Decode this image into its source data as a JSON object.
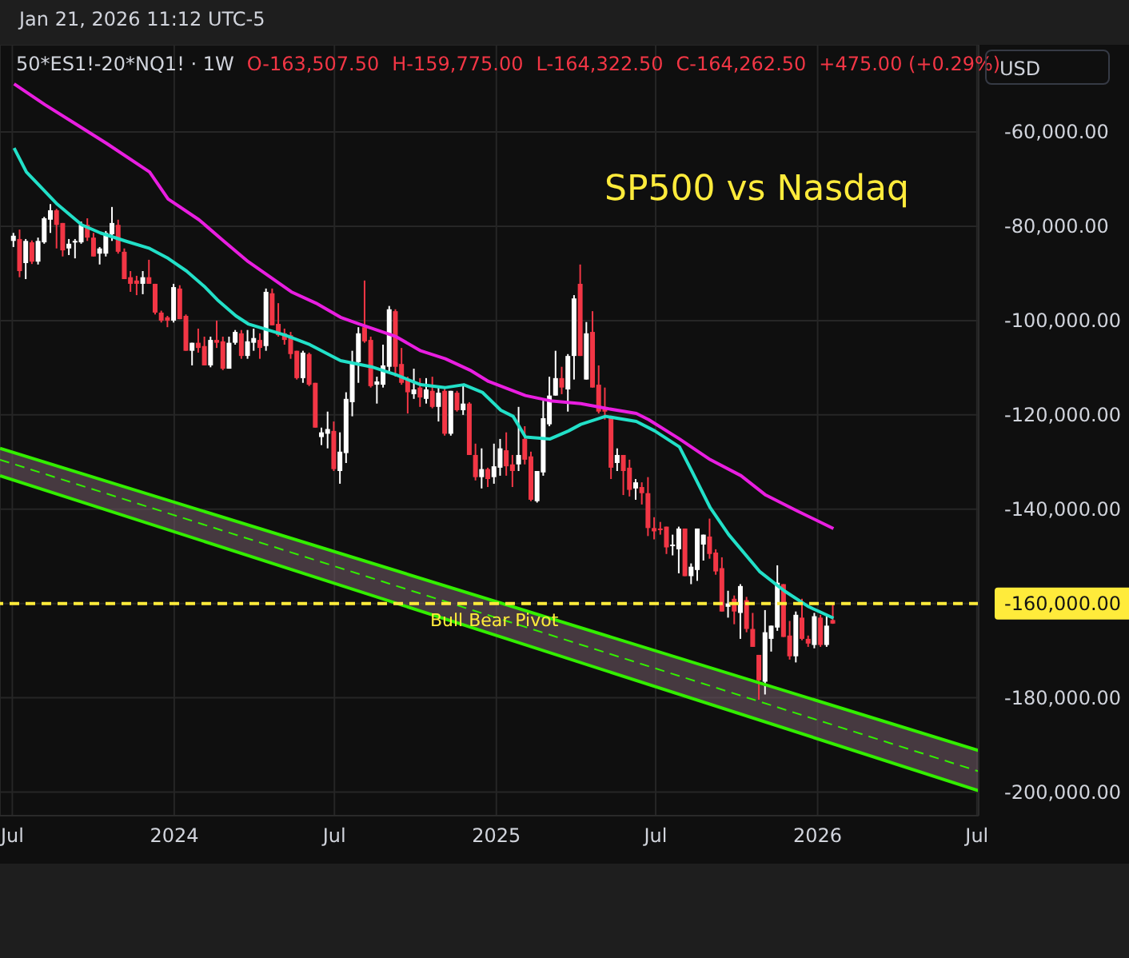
{
  "chart_data": {
    "type": "candlestick",
    "title": "SP500 vs Nasdaq",
    "annotations": [
      "Jan 21, 2026 11:12 UTC-5",
      "50*ES1!-20*NQ1! · 1W",
      "O-163,507.50",
      "H-159,775.00",
      "L-164,322.50",
      "C-164,262.50",
      "+475.00 (+0.29%)",
      "USD"
    ],
    "x": [
      "2023-07-03",
      "2023-07-10",
      "2023-07-17",
      "2023-07-24",
      "2023-07-31",
      "2023-08-07",
      "2023-08-14",
      "2023-08-21",
      "2023-08-28",
      "2023-09-04",
      "2023-09-11",
      "2023-09-18",
      "2023-09-25",
      "2023-10-02",
      "2023-10-09",
      "2023-10-16",
      "2023-10-23",
      "2023-10-30",
      "2023-11-06",
      "2023-11-13",
      "2023-11-20",
      "2023-11-27",
      "2023-12-04",
      "2023-12-11",
      "2023-12-18",
      "2023-12-25",
      "2024-01-01",
      "2024-01-08",
      "2024-01-15",
      "2024-01-22",
      "2024-01-29",
      "2024-02-05",
      "2024-02-12",
      "2024-02-19",
      "2024-02-26",
      "2024-03-04",
      "2024-03-11",
      "2024-03-18",
      "2024-03-25",
      "2024-04-01",
      "2024-04-08",
      "2024-04-15",
      "2024-04-22",
      "2024-04-29",
      "2024-05-06",
      "2024-05-13",
      "2024-05-20",
      "2024-05-27",
      "2024-06-03",
      "2024-06-10",
      "2024-06-17",
      "2024-06-24",
      "2024-07-01",
      "2024-07-08",
      "2024-07-15",
      "2024-07-22",
      "2024-07-29",
      "2024-08-05",
      "2024-08-12",
      "2024-08-19",
      "2024-08-26",
      "2024-09-02",
      "2024-09-09",
      "2024-09-16",
      "2024-09-23",
      "2024-09-30",
      "2024-10-07",
      "2024-10-14",
      "2024-10-21",
      "2024-10-28",
      "2024-11-04",
      "2024-11-11",
      "2024-11-18",
      "2024-11-25",
      "2024-12-02",
      "2024-12-09",
      "2024-12-16",
      "2024-12-23",
      "2024-12-30",
      "2025-01-06",
      "2025-01-13",
      "2025-01-20",
      "2025-01-27",
      "2025-02-03",
      "2025-02-10",
      "2025-02-17",
      "2025-02-24",
      "2025-03-03",
      "2025-03-10",
      "2025-03-17",
      "2025-03-24",
      "2025-03-31",
      "2025-04-07",
      "2025-04-14",
      "2025-04-21",
      "2025-04-28",
      "2025-05-05",
      "2025-05-12",
      "2025-05-19",
      "2025-05-26",
      "2025-06-02",
      "2025-06-09",
      "2025-06-16",
      "2025-06-23",
      "2025-06-30",
      "2025-07-07",
      "2025-07-14",
      "2025-07-21",
      "2025-07-28",
      "2025-08-04",
      "2025-08-11",
      "2025-08-18",
      "2025-08-25",
      "2025-09-01",
      "2025-09-08",
      "2025-09-15",
      "2025-09-22",
      "2025-09-29",
      "2025-10-06",
      "2025-10-13",
      "2025-10-20",
      "2025-10-27",
      "2025-11-03",
      "2025-11-10",
      "2025-11-17",
      "2025-11-24",
      "2025-12-01",
      "2025-12-08",
      "2025-12-15",
      "2025-12-22",
      "2025-12-29",
      "2026-01-05",
      "2026-01-12",
      "2026-01-19"
    ],
    "ohlc": [
      [
        -83100,
        -81400,
        -84400,
        -82000
      ],
      [
        -82700,
        -80700,
        -90800,
        -89500
      ],
      [
        -87800,
        -82700,
        -91200,
        -83100
      ],
      [
        -83400,
        -83000,
        -88000,
        -87500
      ],
      [
        -87500,
        -82400,
        -88100,
        -83100
      ],
      [
        -83400,
        -78000,
        -83700,
        -78300
      ],
      [
        -78600,
        -75300,
        -81400,
        -76600
      ],
      [
        -76600,
        -76300,
        -84700,
        -79700
      ],
      [
        -79300,
        -79300,
        -86400,
        -85100
      ],
      [
        -84700,
        -82700,
        -86100,
        -83700
      ],
      [
        -83400,
        -82700,
        -86800,
        -83100
      ],
      [
        -83400,
        -79000,
        -83700,
        -79700
      ],
      [
        -79700,
        -78300,
        -83100,
        -82400
      ],
      [
        -82400,
        -81400,
        -86400,
        -86400
      ],
      [
        -85800,
        -84400,
        -88100,
        -84700
      ],
      [
        -85800,
        -81000,
        -86400,
        -81400
      ],
      [
        -81700,
        -75900,
        -83100,
        -79300
      ],
      [
        -79700,
        -78600,
        -85800,
        -85400
      ],
      [
        -85400,
        -84700,
        -91200,
        -91200
      ],
      [
        -90800,
        -89500,
        -93900,
        -92200
      ],
      [
        -91500,
        -90500,
        -94600,
        -92200
      ],
      [
        -92200,
        -89500,
        -94400,
        -90800
      ],
      [
        -90800,
        -87100,
        -92200,
        -92200
      ],
      [
        -92200,
        -92200,
        -98700,
        -98300
      ],
      [
        -98300,
        -97900,
        -100400,
        -100000
      ],
      [
        -99300,
        -99000,
        -101400,
        -100000
      ],
      [
        -100000,
        -92200,
        -100400,
        -92900
      ],
      [
        -93200,
        -92500,
        -99700,
        -99700
      ],
      [
        -99000,
        -98700,
        -106400,
        -106400
      ],
      [
        -106400,
        -104700,
        -109500,
        -104700
      ],
      [
        -104700,
        -101700,
        -106800,
        -105800
      ],
      [
        -105400,
        -103400,
        -109500,
        -109500
      ],
      [
        -109500,
        -103400,
        -109900,
        -104100
      ],
      [
        -104100,
        -100000,
        -105800,
        -104700
      ],
      [
        -104400,
        -103400,
        -110500,
        -110200
      ],
      [
        -110200,
        -103400,
        -110200,
        -104700
      ],
      [
        -104700,
        -102000,
        -105100,
        -102400
      ],
      [
        -102700,
        -102000,
        -108100,
        -107500
      ],
      [
        -107500,
        -102000,
        -108100,
        -104400
      ],
      [
        -104700,
        -101700,
        -106400,
        -103700
      ],
      [
        -104100,
        -102700,
        -108100,
        -105800
      ],
      [
        -105400,
        -93200,
        -106400,
        -93900
      ],
      [
        -94200,
        -93200,
        -101000,
        -101000
      ],
      [
        -100700,
        -96300,
        -103400,
        -103100
      ],
      [
        -102700,
        -101700,
        -105100,
        -104100
      ],
      [
        -103100,
        -102400,
        -108100,
        -107100
      ],
      [
        -106400,
        -106400,
        -112500,
        -112200
      ],
      [
        -112200,
        -106400,
        -113200,
        -106800
      ],
      [
        -107100,
        -106800,
        -113900,
        -113600
      ],
      [
        -113200,
        -113200,
        -122700,
        -122700
      ],
      [
        -124700,
        -122700,
        -126400,
        -123700
      ],
      [
        -124000,
        -119300,
        -127100,
        -123000
      ],
      [
        -123400,
        -121400,
        -131900,
        -131500
      ],
      [
        -131900,
        -123700,
        -134600,
        -127800
      ],
      [
        -128100,
        -115200,
        -130200,
        -116600
      ],
      [
        -117300,
        -106400,
        -120300,
        -108800
      ],
      [
        -108800,
        -101400,
        -113200,
        -102700
      ],
      [
        -101400,
        -91500,
        -104700,
        -104400
      ],
      [
        -104100,
        -103400,
        -114200,
        -113900
      ],
      [
        -113600,
        -111900,
        -117600,
        -112900
      ],
      [
        -113600,
        -105100,
        -114200,
        -109500
      ],
      [
        -109800,
        -96900,
        -110800,
        -97600
      ],
      [
        -98000,
        -97600,
        -111900,
        -109800
      ],
      [
        -109200,
        -105800,
        -113600,
        -113200
      ],
      [
        -112500,
        -111900,
        -119700,
        -115200
      ],
      [
        -115600,
        -110200,
        -116600,
        -114600
      ],
      [
        -114200,
        -112200,
        -118300,
        -116300
      ],
      [
        -116600,
        -112200,
        -117600,
        -114600
      ],
      [
        -114900,
        -111900,
        -118600,
        -118300
      ],
      [
        -118300,
        -114200,
        -121400,
        -115300
      ],
      [
        -114900,
        -114200,
        -124400,
        -124000
      ],
      [
        -124000,
        -114900,
        -124400,
        -114900
      ],
      [
        -115300,
        -114900,
        -119300,
        -119000
      ],
      [
        -119000,
        -113600,
        -120000,
        -117600
      ],
      [
        -117600,
        -117300,
        -128500,
        -128500
      ],
      [
        -128500,
        -126100,
        -133900,
        -133200
      ],
      [
        -133200,
        -127100,
        -135600,
        -131500
      ],
      [
        -131500,
        -131200,
        -135300,
        -133600
      ],
      [
        -133200,
        -126100,
        -134600,
        -130900
      ],
      [
        -131200,
        -125100,
        -132900,
        -127100
      ],
      [
        -127500,
        -123700,
        -132900,
        -130900
      ],
      [
        -130500,
        -128500,
        -135300,
        -131900
      ],
      [
        -130500,
        -118300,
        -131900,
        -128500
      ],
      [
        -125100,
        -122400,
        -130500,
        -129500
      ],
      [
        -128800,
        -127800,
        -138300,
        -138000
      ],
      [
        -138300,
        -131900,
        -138600,
        -131900
      ],
      [
        -132200,
        -117000,
        -132900,
        -120700
      ],
      [
        -122000,
        -111900,
        -122400,
        -115900
      ],
      [
        -115900,
        -106400,
        -115900,
        -112200
      ],
      [
        -112200,
        -109800,
        -115600,
        -114200
      ],
      [
        -114600,
        -107100,
        -119300,
        -107500
      ],
      [
        -107500,
        -94600,
        -112500,
        -95300
      ],
      [
        -92200,
        -88100,
        -107500,
        -107500
      ],
      [
        -112500,
        -100300,
        -112500,
        -102700
      ],
      [
        -102400,
        -98000,
        -114200,
        -114200
      ],
      [
        -113600,
        -109500,
        -119700,
        -119300
      ],
      [
        -118300,
        -114200,
        -121000,
        -119300
      ],
      [
        -120300,
        -120300,
        -133600,
        -131200
      ],
      [
        -130200,
        -127100,
        -131900,
        -128500
      ],
      [
        -128500,
        -128500,
        -137000,
        -131900
      ],
      [
        -131200,
        -129500,
        -137300,
        -135900
      ],
      [
        -135600,
        -133600,
        -138000,
        -134300
      ],
      [
        -135300,
        -134300,
        -139000,
        -136600
      ],
      [
        -136600,
        -133200,
        -145700,
        -144000
      ],
      [
        -144000,
        -141700,
        -146400,
        -144700
      ],
      [
        -144100,
        -142700,
        -145400,
        -144400
      ],
      [
        -143700,
        -143700,
        -149500,
        -148100
      ],
      [
        -147800,
        -145400,
        -149800,
        -147500
      ],
      [
        -148500,
        -143700,
        -153600,
        -144100
      ],
      [
        -144100,
        -144100,
        -154200,
        -154200
      ],
      [
        -154200,
        -151500,
        -155900,
        -152200
      ],
      [
        -152900,
        -144100,
        -155200,
        -144100
      ],
      [
        -147500,
        -145400,
        -150900,
        -145400
      ],
      [
        -145800,
        -142000,
        -150500,
        -149500
      ],
      [
        -149200,
        -148500,
        -153900,
        -153200
      ],
      [
        -152500,
        -150200,
        -161700,
        -161700
      ],
      [
        -160700,
        -157300,
        -163000,
        -160000
      ],
      [
        -159000,
        -158300,
        -164400,
        -161700
      ],
      [
        -162000,
        -155900,
        -167500,
        -156300
      ],
      [
        -159300,
        -158600,
        -166100,
        -165400
      ],
      [
        -165400,
        -162000,
        -169200,
        -169200
      ],
      [
        -170900,
        -170900,
        -180400,
        -176300
      ],
      [
        -176600,
        -161400,
        -179300,
        -166100
      ],
      [
        -167500,
        -164700,
        -170200,
        -164700
      ],
      [
        -165100,
        -151900,
        -165800,
        -155600
      ],
      [
        -155900,
        -155900,
        -167100,
        -167100
      ],
      [
        -166800,
        -163700,
        -171900,
        -171200
      ],
      [
        -171200,
        -161700,
        -172500,
        -162400
      ],
      [
        -163000,
        -159000,
        -167800,
        -167500
      ],
      [
        -167500,
        -166800,
        -169200,
        -168500
      ],
      [
        -168800,
        -162000,
        -169500,
        -162700
      ],
      [
        -163000,
        -162400,
        -169200,
        -168800
      ],
      [
        -168800,
        -162700,
        -169200,
        -164700
      ],
      [
        -163507.5,
        -159775,
        -164322.5,
        -164262.5
      ]
    ],
    "series": [
      {
        "type": "line",
        "color": "#22e0c8",
        "x": [
          "2023-07-03",
          "2023-07-17",
          "2023-07-31",
          "2023-08-21",
          "2023-09-18",
          "2023-10-09",
          "2023-11-06",
          "2023-12-04",
          "2023-12-25",
          "2024-01-15",
          "2024-02-05",
          "2024-02-19",
          "2024-03-11",
          "2024-03-25",
          "2024-05-06",
          "2024-06-03",
          "2024-07-08",
          "2024-08-12",
          "2024-09-09",
          "2024-10-07",
          "2024-11-04",
          "2024-11-25",
          "2024-12-16",
          "2025-01-06",
          "2025-01-20",
          "2025-02-03",
          "2025-03-03",
          "2025-03-24",
          "2025-04-07",
          "2025-05-05",
          "2025-06-09",
          "2025-06-30",
          "2025-07-28",
          "2025-08-11",
          "2025-09-01",
          "2025-09-22",
          "2025-10-27",
          "2025-11-24",
          "2025-12-22",
          "2026-01-19"
        ],
        "values": [
          -63400,
          -68500,
          -71200,
          -75300,
          -79700,
          -81400,
          -83100,
          -84700,
          -86800,
          -89500,
          -92900,
          -95600,
          -99000,
          -100700,
          -103100,
          -105100,
          -108500,
          -109800,
          -111500,
          -113600,
          -114200,
          -113600,
          -115200,
          -119000,
          -120300,
          -124700,
          -125100,
          -123400,
          -122000,
          -120300,
          -121400,
          -123400,
          -126800,
          -131900,
          -139700,
          -145400,
          -153200,
          -157300,
          -160700,
          -163100
        ]
      },
      {
        "type": "line",
        "color": "#e91ee0",
        "x": [
          "2023-07-03",
          "2023-08-07",
          "2023-09-11",
          "2023-10-16",
          "2023-12-04",
          "2023-12-25",
          "2024-01-29",
          "2024-02-26",
          "2024-03-25",
          "2024-05-13",
          "2024-06-10",
          "2024-07-08",
          "2024-07-29",
          "2024-09-09",
          "2024-10-07",
          "2024-11-04",
          "2024-12-02",
          "2024-12-23",
          "2025-02-03",
          "2025-03-03",
          "2025-04-07",
          "2025-05-05",
          "2025-06-09",
          "2025-06-23",
          "2025-07-28",
          "2025-09-01",
          "2025-10-06",
          "2025-11-03",
          "2025-12-08",
          "2026-01-19"
        ],
        "values": [
          -49800,
          -54200,
          -58300,
          -62400,
          -68500,
          -74200,
          -78600,
          -83100,
          -87500,
          -93900,
          -96300,
          -99300,
          -100700,
          -103400,
          -106400,
          -108100,
          -110500,
          -112900,
          -115900,
          -117000,
          -117600,
          -118600,
          -119700,
          -121000,
          -125100,
          -129500,
          -132900,
          -137000,
          -140300,
          -144100
        ]
      },
      {
        "type": "line",
        "color": "#33ee00",
        "line_style": "dashed",
        "x": [
          "2023-06-17",
          "2026-07-03"
        ],
        "values": [
          -129500,
          -195600
        ],
        "lower": [
          -132900,
          -199700
        ],
        "upper": [
          -127100,
          -191200
        ]
      },
      {
        "type": "line",
        "color": "#33ee00",
        "x": [
          "2023-06-17",
          "2026-07-03"
        ],
        "values": [
          -127100,
          -191200
        ]
      },
      {
        "type": "line",
        "color": "#33ee00",
        "x": [
          "2023-06-17",
          "2026-07-03"
        ],
        "values": [
          -132900,
          -199700
        ]
      }
    ],
    "xlim": [
      "2023-06-17",
      "2026-07-03"
    ],
    "xticks": [
      {
        "value": "2023-07-01",
        "label": "Jul"
      },
      {
        "value": "2024-01-01",
        "label": "2024"
      },
      {
        "value": "2024-07-01",
        "label": "Jul"
      },
      {
        "value": "2025-01-01",
        "label": "2025"
      },
      {
        "value": "2025-07-01",
        "label": "Jul"
      },
      {
        "value": "2026-01-01",
        "label": "2026"
      },
      {
        "value": "2026-07-01",
        "label": "Jul"
      }
    ],
    "ylim": [
      -205000,
      -41500
    ],
    "yticks": [
      {
        "value": -200000,
        "label": "-200,000.00"
      },
      {
        "value": -180000,
        "label": "-180,000.00"
      },
      {
        "value": -160000,
        "label": "-160,000.00"
      },
      {
        "value": -140000,
        "label": "-140,000.00"
      },
      {
        "value": -120000,
        "label": "-120,000.00"
      },
      {
        "value": -100000,
        "label": "-100,000.00"
      },
      {
        "value": -80000,
        "label": "-80,000.00"
      },
      {
        "value": -60000,
        "label": "-60,000.00"
      }
    ],
    "grid": true,
    "ref_lines": [
      {
        "axis": "y",
        "value": -160000,
        "label": "Bull Bear Pivot",
        "color": "#ffeb3b",
        "line_style": "dashed"
      }
    ]
  }
}
